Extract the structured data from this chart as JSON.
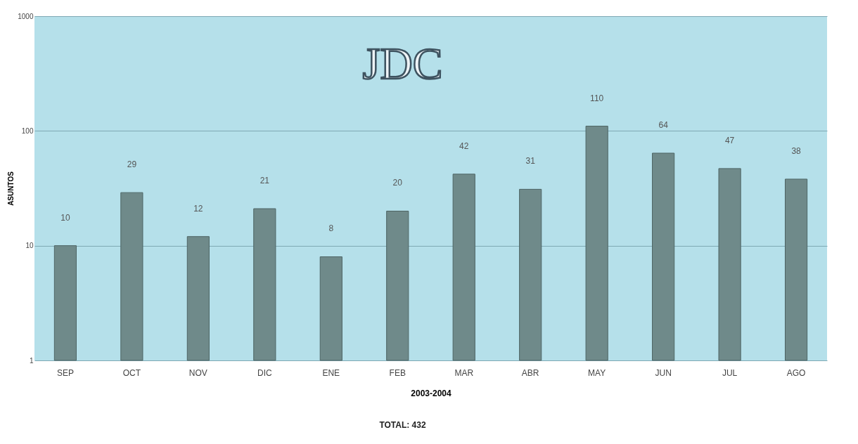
{
  "chart_data": {
    "type": "bar",
    "title": "JDC",
    "xlabel": "2003-2004",
    "ylabel": "ASUNTOS",
    "categories": [
      "SEP",
      "OCT",
      "NOV",
      "DIC",
      "ENE",
      "FEB",
      "MAR",
      "ABR",
      "MAY",
      "JUN",
      "JUL",
      "AGO"
    ],
    "values": [
      10,
      29,
      12,
      21,
      8,
      20,
      42,
      31,
      110,
      64,
      47,
      38
    ],
    "color": "#6f8a8a",
    "log": true,
    "ylim": [
      1,
      1000
    ],
    "yticks": [
      1,
      10,
      100,
      1000
    ],
    "grid": "y",
    "data_labels": true,
    "annotations": [
      "TOTAL:  432"
    ]
  }
}
